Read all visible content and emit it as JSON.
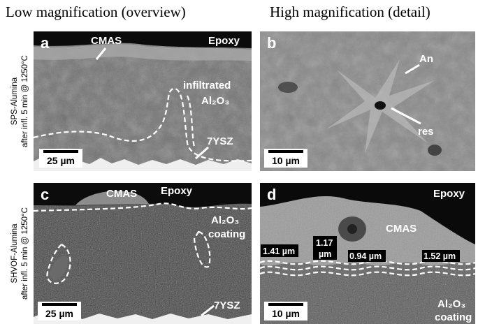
{
  "headers": [
    "Low magnification (overview)",
    "High magnification (detail)"
  ],
  "rows": [
    {
      "lines": [
        "SPS-Alumina",
        "after infl. 5 min @ 1250°C"
      ]
    },
    {
      "lines": [
        "SHVOF-Alumina",
        "after infl. 5 min @ 1250°C"
      ]
    }
  ],
  "panels": [
    {
      "letter": "a",
      "labels": [
        "CMAS",
        "Epoxy",
        "infiltrated",
        "Al₂O₃",
        "7YSZ"
      ],
      "scale": "25 µm"
    },
    {
      "letter": "b",
      "labels": [
        "An",
        "res"
      ],
      "scale": "10 µm"
    },
    {
      "letter": "c",
      "labels": [
        "CMAS",
        "Epoxy",
        "Al₂O₃",
        "coating",
        "7YSZ"
      ],
      "scale": "25 µm"
    },
    {
      "letter": "d",
      "labels": [
        "Epoxy",
        "CMAS",
        "Al₂O₃",
        "coating"
      ],
      "measurements": [
        "1.41 µm",
        "1.17",
        "µm",
        "0.94 µm",
        "1.52 µm"
      ],
      "scale": "10 µm"
    }
  ]
}
